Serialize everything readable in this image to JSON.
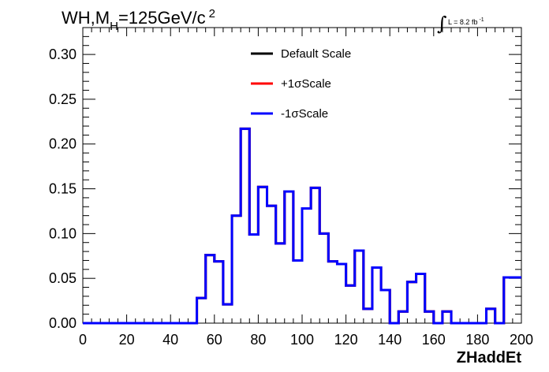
{
  "chart_data": {
    "type": "line",
    "title": {
      "main": "WH,M",
      "subscript": "H",
      "rest": "=125GeV/c",
      "superscript": "2"
    },
    "lumi": {
      "integral": "∫",
      "text": "L = 8.2 fb",
      "superscript": "-1"
    },
    "xlabel": "ZHaddEt",
    "ylabel": "",
    "xlim": [
      0,
      200
    ],
    "ylim": [
      0,
      0.33
    ],
    "x_ticks": [
      "0",
      "20",
      "40",
      "60",
      "80",
      "100",
      "120",
      "140",
      "160",
      "180",
      "200"
    ],
    "y_ticks": [
      "0.00",
      "0.05",
      "0.10",
      "0.15",
      "0.20",
      "0.25",
      "0.30"
    ],
    "x_tick_values": [
      0,
      20,
      40,
      60,
      80,
      100,
      120,
      140,
      160,
      180,
      200
    ],
    "y_tick_values": [
      0,
      0.05,
      0.1,
      0.15,
      0.2,
      0.25,
      0.3
    ],
    "bin_edges": [
      0,
      4,
      8,
      12,
      16,
      20,
      24,
      28,
      32,
      36,
      40,
      44,
      48,
      52,
      56,
      60,
      64,
      68,
      72,
      76,
      80,
      84,
      88,
      92,
      96,
      100,
      104,
      108,
      112,
      116,
      120,
      124,
      128,
      132,
      136,
      140,
      144,
      148,
      152,
      156,
      160,
      164,
      168,
      172,
      176,
      180,
      184,
      188,
      192,
      196,
      200
    ],
    "series": [
      {
        "name": "Default Scale",
        "color": "#000000",
        "values": [
          0,
          0,
          0,
          0,
          0,
          0,
          0,
          0,
          0,
          0,
          0,
          0,
          0,
          0.028,
          0.076,
          0.069,
          0.021,
          0.12,
          0.217,
          0.099,
          0.152,
          0.131,
          0.089,
          0.147,
          0.07,
          0.128,
          0.151,
          0.1,
          0.069,
          0.066,
          0.042,
          0.081,
          0.016,
          0.062,
          0.037,
          0,
          0.013,
          0.046,
          0.055,
          0.013,
          0,
          0.013,
          0,
          0,
          0,
          0,
          0.016,
          0,
          0.051,
          0.051
        ]
      },
      {
        "name": "+1σScale",
        "color": "#ff0000",
        "values": [
          0,
          0,
          0,
          0,
          0,
          0,
          0,
          0,
          0,
          0,
          0,
          0,
          0,
          0.028,
          0.076,
          0.069,
          0.021,
          0.12,
          0.217,
          0.099,
          0.152,
          0.131,
          0.089,
          0.147,
          0.07,
          0.128,
          0.151,
          0.1,
          0.069,
          0.066,
          0.042,
          0.081,
          0.016,
          0.062,
          0.037,
          0,
          0.013,
          0.046,
          0.055,
          0.013,
          0,
          0.013,
          0,
          0,
          0,
          0,
          0.016,
          0,
          0.051,
          0.051
        ]
      },
      {
        "name": "-1σScale",
        "color": "#0000ff",
        "values": [
          0,
          0,
          0,
          0,
          0,
          0,
          0,
          0,
          0,
          0,
          0,
          0,
          0,
          0.028,
          0.076,
          0.069,
          0.021,
          0.12,
          0.217,
          0.099,
          0.152,
          0.131,
          0.089,
          0.147,
          0.07,
          0.128,
          0.151,
          0.1,
          0.069,
          0.066,
          0.042,
          0.081,
          0.016,
          0.062,
          0.037,
          0,
          0.013,
          0.046,
          0.055,
          0.013,
          0,
          0.013,
          0,
          0,
          0,
          0,
          0.016,
          0,
          0.051,
          0.051
        ]
      }
    ],
    "legend_position": "top-center",
    "grid": false
  }
}
